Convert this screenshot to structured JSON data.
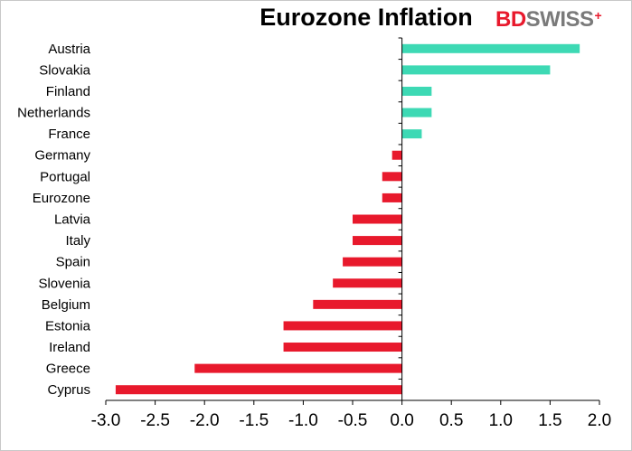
{
  "chart_data": {
    "type": "bar",
    "orientation": "horizontal",
    "title": "Eurozone Inflation",
    "categories": [
      "Austria",
      "Slovakia",
      "Finland",
      "Netherlands",
      "France",
      "Germany",
      "Portugal",
      "Eurozone",
      "Latvia",
      "Italy",
      "Spain",
      "Slovenia",
      "Belgium",
      "Estonia",
      "Ireland",
      "Greece",
      "Cyprus"
    ],
    "values": [
      1.8,
      1.5,
      0.3,
      0.3,
      0.2,
      -0.1,
      -0.2,
      -0.2,
      -0.5,
      -0.5,
      -0.6,
      -0.7,
      -0.9,
      -1.2,
      -1.2,
      -2.1,
      -2.9
    ],
    "xlim": [
      -3.0,
      2.0
    ],
    "xticks": [
      "-3.0",
      "-2.5",
      "-2.0",
      "-1.5",
      "-1.0",
      "-0.5",
      "0.0",
      "0.5",
      "1.0",
      "1.5",
      "2.0"
    ],
    "xlabel": "",
    "ylabel": "",
    "grid": false,
    "colors": {
      "positive": "#3dd9b4",
      "negative": "#e8192c"
    }
  },
  "logo": {
    "part1": "BD",
    "part2": "SWISS",
    "mark": "+"
  }
}
